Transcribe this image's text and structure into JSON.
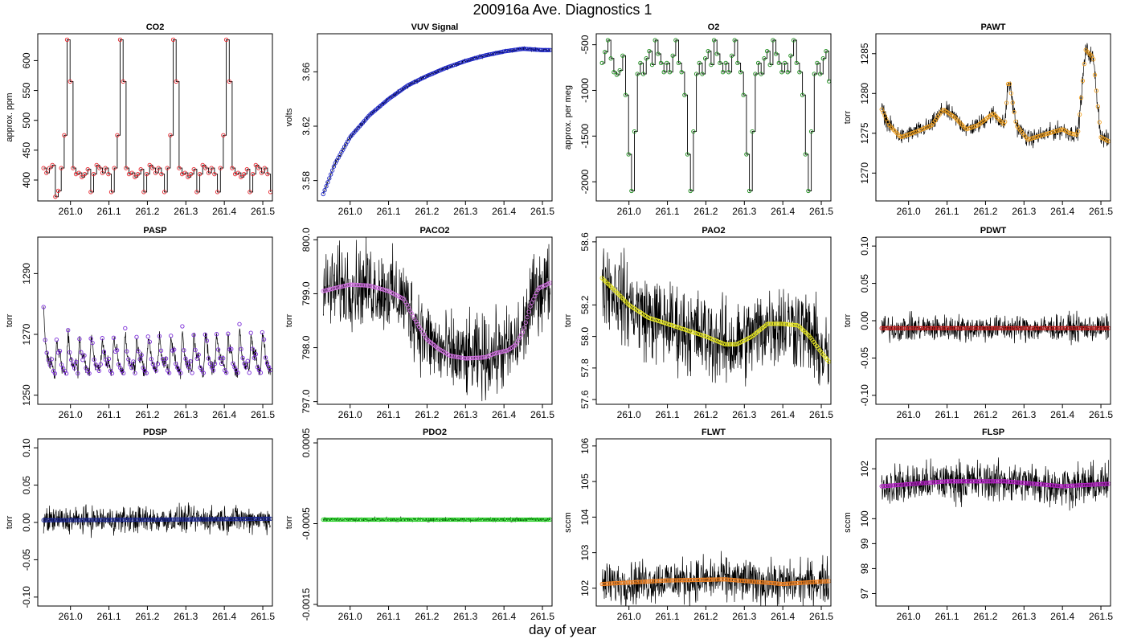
{
  "figure": {
    "title": "200916a   Ave. Diagnostics 1",
    "xlabel": "day of year"
  },
  "chart_data": [
    {
      "id": "co2",
      "type": "line",
      "title": "CO2",
      "ylabel": "approx. ppm",
      "xlim": [
        260.915,
        261.525
      ],
      "ylim": [
        365,
        645
      ],
      "xticks": [
        "261.0",
        "261.1",
        "261.2",
        "261.3",
        "261.4",
        "261.5"
      ],
      "yticks": [
        "400",
        "450",
        "500",
        "550",
        "600"
      ],
      "marker_color": "#e8242c",
      "noise": 2,
      "trace": "step",
      "series": [
        {
          "x0": 260.93,
          "x1": 261.52,
          "values": [
            420,
            412,
            420,
            425,
            372,
            382,
            420,
            475,
            635,
            565,
            420,
            410,
            412,
            405,
            410,
            418,
            380,
            410,
            425,
            420,
            412,
            420,
            410,
            380,
            420,
            475,
            635,
            565,
            420,
            410,
            412,
            405,
            410,
            418,
            380,
            410,
            425,
            420,
            412,
            420,
            410,
            380,
            420,
            475,
            635,
            565,
            420,
            410,
            412,
            405,
            410,
            418,
            380,
            410,
            425,
            420,
            412,
            420,
            410,
            380,
            420,
            475,
            635,
            565,
            420,
            410,
            412,
            405,
            410,
            418,
            380,
            410,
            425,
            420,
            412,
            420,
            410,
            380
          ]
        }
      ]
    },
    {
      "id": "vuv",
      "type": "line",
      "title": "VUV Signal",
      "ylabel": "volts",
      "xlim": [
        260.915,
        261.525
      ],
      "ylim": [
        3.565,
        3.688
      ],
      "xticks": [
        "261.0",
        "261.1",
        "261.2",
        "261.3",
        "261.4",
        "261.5"
      ],
      "yticks": [
        "3.58",
        "3.62",
        "3.66"
      ],
      "marker_color": "#1c25c8",
      "noise": 0.0012,
      "trace": "smooth",
      "series": [
        {
          "x": [
            260.93,
            260.96,
            261.0,
            261.05,
            261.1,
            261.15,
            261.2,
            261.25,
            261.3,
            261.35,
            261.4,
            261.45,
            261.5,
            261.52
          ],
          "y": [
            3.57,
            3.592,
            3.612,
            3.628,
            3.64,
            3.65,
            3.657,
            3.663,
            3.668,
            3.672,
            3.675,
            3.677,
            3.676,
            3.676
          ]
        }
      ]
    },
    {
      "id": "o2",
      "type": "line",
      "title": "O2",
      "ylabel": "approx. per meg",
      "xlim": [
        260.915,
        261.525
      ],
      "ylim": [
        -2210,
        -380
      ],
      "xticks": [
        "261.0",
        "261.1",
        "261.2",
        "261.3",
        "261.4",
        "261.5"
      ],
      "yticks": [
        "-2000",
        "-1500",
        "-1000",
        "-500"
      ],
      "marker_color": "#1a8c1a",
      "noise": 15,
      "trace": "step",
      "series": [
        {
          "x0": 260.93,
          "x1": 261.52,
          "values": [
            -700,
            -580,
            -450,
            -650,
            -800,
            -830,
            -780,
            -620,
            -1050,
            -1700,
            -2100,
            -1450,
            -820,
            -700,
            -820,
            -650,
            -570,
            -720,
            -450,
            -600,
            -700,
            -800,
            -700,
            -800,
            -620,
            -450,
            -700,
            -800,
            -1050,
            -1700,
            -2100,
            -1450,
            -820,
            -700,
            -820,
            -650,
            -570,
            -720,
            -450,
            -600,
            -700,
            -800,
            -700,
            -800,
            -620,
            -450,
            -700,
            -800,
            -1050,
            -1700,
            -2100,
            -1450,
            -820,
            -700,
            -820,
            -650,
            -570,
            -720,
            -450,
            -600,
            -700,
            -800,
            -700,
            -800,
            -620,
            -450,
            -700,
            -800,
            -1050,
            -1700,
            -2100,
            -1450,
            -820,
            -700,
            -820,
            -650,
            -570,
            -900
          ]
        }
      ]
    },
    {
      "id": "pawt",
      "type": "line",
      "title": "PAWT",
      "ylabel": "torr",
      "xlim": [
        260.915,
        261.525
      ],
      "ylim": [
        1266.5,
        1287.5
      ],
      "xticks": [
        "261.0",
        "261.1",
        "261.2",
        "261.3",
        "261.4",
        "261.5"
      ],
      "yticks": [
        "1270",
        "1275",
        "1280",
        "1285"
      ],
      "marker_color": "#f0a020",
      "noise": 0.8,
      "trace": "smooth",
      "series": [
        {
          "x": [
            260.93,
            260.95,
            260.98,
            261.02,
            261.06,
            261.09,
            261.12,
            261.15,
            261.18,
            261.22,
            261.25,
            261.26,
            261.28,
            261.31,
            261.35,
            261.4,
            261.42,
            261.44,
            261.46,
            261.48,
            261.5,
            261.52
          ],
          "y": [
            1278,
            1276,
            1274.5,
            1275.2,
            1276,
            1278,
            1277,
            1275.5,
            1276,
            1277.5,
            1276,
            1282,
            1276,
            1274.2,
            1274.8,
            1275.5,
            1275,
            1274.8,
            1285.5,
            1284.5,
            1274.5,
            1274
          ]
        }
      ]
    },
    {
      "id": "pasp",
      "type": "line",
      "title": "PASP",
      "ylabel": "torr",
      "xlim": [
        260.915,
        261.525
      ],
      "ylim": [
        1247,
        1302
      ],
      "xticks": [
        "261.0",
        "261.1",
        "261.2",
        "261.3",
        "261.4",
        "261.5"
      ],
      "yticks": [
        "1250",
        "1270",
        "1290"
      ],
      "marker_color": "#7a2ad8",
      "noise": 1.5,
      "trace": "sawtooth",
      "period": 0.0298,
      "series": [
        {
          "x": [
            260.93,
            261.52
          ],
          "y": [
            1262,
            1262
          ]
        }
      ]
    },
    {
      "id": "paco2",
      "type": "line",
      "title": "PACO2",
      "ylabel": "torr",
      "xlim": [
        260.915,
        261.525
      ],
      "ylim": [
        796.95,
        800.05
      ],
      "xticks": [
        "261.0",
        "261.1",
        "261.2",
        "261.3",
        "261.4",
        "261.5"
      ],
      "yticks": [
        "797.0",
        "798.0",
        "799.0",
        "800.0"
      ],
      "marker_color": "#d070e0",
      "noise": 0.55,
      "trace": "smooth",
      "series": [
        {
          "x": [
            260.93,
            260.97,
            261.0,
            261.05,
            261.1,
            261.14,
            261.17,
            261.2,
            261.23,
            261.26,
            261.3,
            261.35,
            261.38,
            261.41,
            261.43,
            261.45,
            261.47,
            261.49,
            261.52
          ],
          "y": [
            799.05,
            799.12,
            799.17,
            799.15,
            799.05,
            798.9,
            798.5,
            798.15,
            797.98,
            797.85,
            797.8,
            797.82,
            797.9,
            797.95,
            798.05,
            798.3,
            798.8,
            799.1,
            799.2
          ]
        }
      ]
    },
    {
      "id": "pao2",
      "type": "line",
      "title": "PAO2",
      "ylabel": "torr",
      "xlim": [
        260.915,
        261.525
      ],
      "ylim": [
        57.57,
        58.63
      ],
      "xticks": [
        "261.0",
        "261.1",
        "261.2",
        "261.3",
        "261.4",
        "261.5"
      ],
      "yticks": [
        "57.6",
        "57.8",
        "58.0",
        "58.2",
        "58.6"
      ],
      "marker_color": "#e8e820",
      "noise": 0.2,
      "trace": "smooth",
      "series": [
        {
          "x": [
            260.93,
            260.96,
            261.0,
            261.05,
            261.1,
            261.15,
            261.2,
            261.25,
            261.28,
            261.32,
            261.36,
            261.4,
            261.44,
            261.47,
            261.5,
            261.52
          ],
          "y": [
            58.37,
            58.3,
            58.2,
            58.12,
            58.08,
            58.04,
            58.0,
            57.95,
            57.95,
            58.0,
            58.08,
            58.08,
            58.07,
            58.0,
            57.9,
            57.84
          ]
        }
      ]
    },
    {
      "id": "pdwt",
      "type": "line",
      "title": "PDWT",
      "ylabel": "torr",
      "xlim": [
        260.915,
        261.525
      ],
      "ylim": [
        -0.112,
        0.112
      ],
      "xticks": [
        "261.0",
        "261.1",
        "261.2",
        "261.3",
        "261.4",
        "261.5"
      ],
      "yticks": [
        "-0.10",
        "-0.05",
        "0.00",
        "0.05",
        "0.10"
      ],
      "marker_color": "#c02020",
      "noise": 0.013,
      "trace": "smooth",
      "series": [
        {
          "x": [
            260.93,
            261.52
          ],
          "y": [
            -0.01,
            -0.01
          ]
        }
      ]
    },
    {
      "id": "pdsp",
      "type": "line",
      "title": "PDSP",
      "ylabel": "torr",
      "xlim": [
        260.915,
        261.525
      ],
      "ylim": [
        -0.112,
        0.112
      ],
      "xticks": [
        "261.0",
        "261.1",
        "261.2",
        "261.3",
        "261.4",
        "261.5"
      ],
      "yticks": [
        "-0.10",
        "-0.05",
        "0.00",
        "0.05",
        "0.10"
      ],
      "marker_color": "#1c2890",
      "noise": 0.013,
      "trace": "smooth",
      "series": [
        {
          "x": [
            260.93,
            261.3,
            261.52
          ],
          "y": [
            0.003,
            0.004,
            0.005
          ]
        }
      ]
    },
    {
      "id": "pdo2",
      "type": "line",
      "title": "PDO2",
      "ylabel": "torr",
      "xlim": [
        260.915,
        261.525
      ],
      "ylim": [
        -0.00152,
        0.00055
      ],
      "xticks": [
        "261.0",
        "261.1",
        "261.2",
        "261.3",
        "261.4",
        "261.5"
      ],
      "yticks": [
        "-0.0015",
        "-0.0005",
        "0.0005"
      ],
      "marker_color": "#20d020",
      "noise": 2e-05,
      "trace": "smooth",
      "series": [
        {
          "x": [
            260.93,
            261.52
          ],
          "y": [
            -0.00045,
            -0.00045
          ]
        }
      ]
    },
    {
      "id": "flwt",
      "type": "line",
      "title": "FLWT",
      "ylabel": "sccm",
      "xlim": [
        260.915,
        261.525
      ],
      "ylim": [
        101.5,
        106.2
      ],
      "xticks": [
        "261.0",
        "261.1",
        "261.2",
        "261.3",
        "261.4",
        "261.5"
      ],
      "yticks": [
        "102",
        "103",
        "104",
        "105",
        "106"
      ],
      "marker_color": "#f08020",
      "noise": 0.45,
      "trace": "smooth",
      "series": [
        {
          "x": [
            260.93,
            261.1,
            261.25,
            261.4,
            261.52
          ],
          "y": [
            102.12,
            102.22,
            102.25,
            102.12,
            102.2
          ]
        }
      ]
    },
    {
      "id": "flsp",
      "type": "line",
      "title": "FLSP",
      "ylabel": "sccm",
      "xlim": [
        260.915,
        261.525
      ],
      "ylim": [
        96.5,
        103.2
      ],
      "xticks": [
        "261.0",
        "261.1",
        "261.2",
        "261.3",
        "261.4",
        "261.5"
      ],
      "yticks": [
        "97",
        "98",
        "99",
        "100",
        "102"
      ],
      "marker_color": "#b020c0",
      "noise": 0.6,
      "trace": "smooth",
      "series": [
        {
          "x": [
            260.93,
            261.1,
            261.25,
            261.4,
            261.52
          ],
          "y": [
            101.3,
            101.5,
            101.5,
            101.3,
            101.4
          ]
        }
      ]
    }
  ]
}
